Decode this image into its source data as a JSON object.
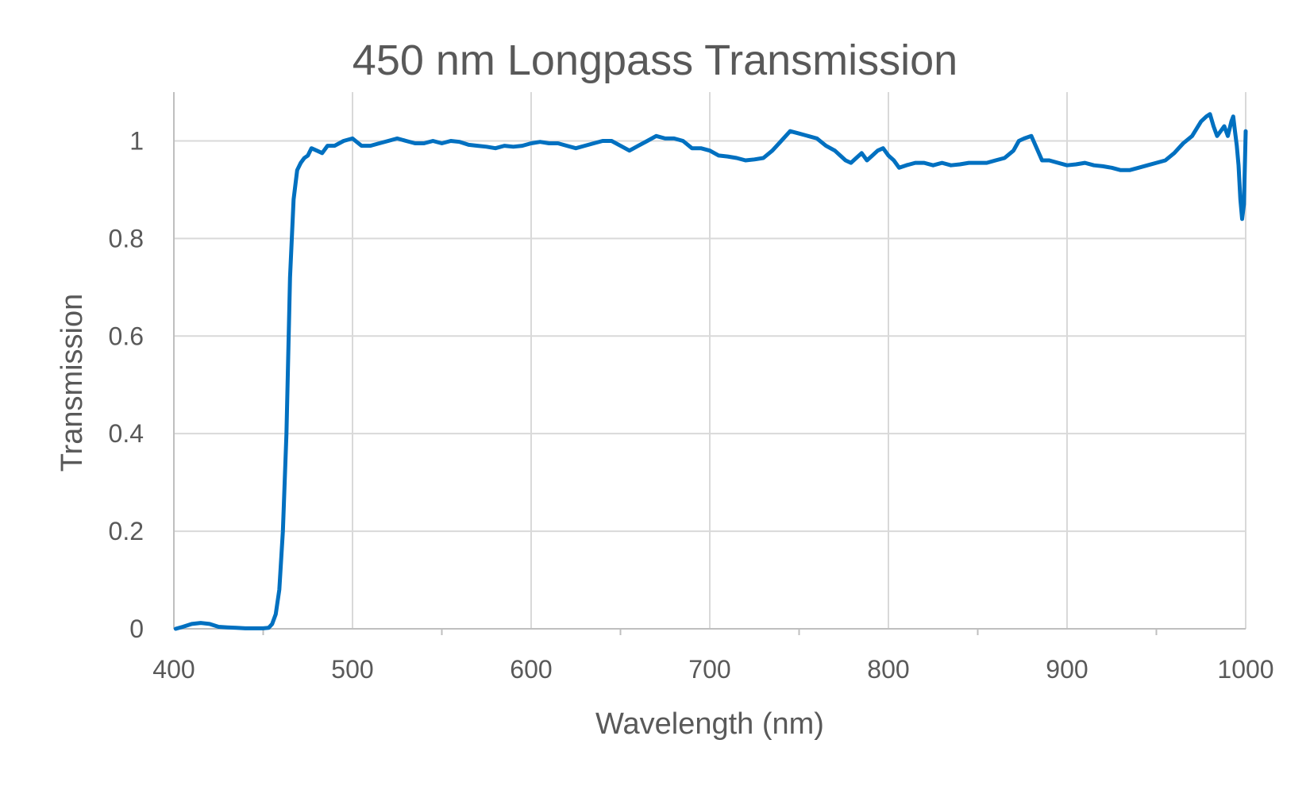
{
  "chart_data": {
    "type": "line",
    "title": "450 nm Longpass Transmission",
    "xlabel": "Wavelength (nm)",
    "ylabel": "Transmission",
    "xlim": [
      400,
      1000
    ],
    "ylim": [
      0,
      1.1
    ],
    "x_ticks": [
      400,
      500,
      600,
      700,
      800,
      900,
      1000
    ],
    "y_ticks": [
      0,
      0.2,
      0.4,
      0.6,
      0.8,
      1
    ],
    "x_tick_labels": [
      "400",
      "500",
      "600",
      "700",
      "800",
      "900",
      "1000"
    ],
    "y_tick_labels": [
      "0",
      "0.2",
      "0.4",
      "0.6",
      "0.8",
      "1"
    ],
    "grid": true,
    "legend": "none",
    "line_color": "#0070c0",
    "series": [
      {
        "x": [
          401,
          405,
          410,
          415,
          420,
          425,
          430,
          435,
          440,
          445,
          450,
          453,
          455,
          457,
          459,
          461,
          463,
          465,
          467,
          469,
          471,
          473,
          475,
          477,
          480,
          483,
          486,
          490,
          495,
          500,
          505,
          510,
          515,
          520,
          525,
          530,
          535,
          540,
          545,
          550,
          555,
          560,
          565,
          570,
          575,
          580,
          585,
          590,
          595,
          600,
          605,
          610,
          615,
          620,
          625,
          630,
          635,
          640,
          645,
          650,
          655,
          660,
          665,
          670,
          675,
          680,
          685,
          690,
          695,
          700,
          705,
          710,
          715,
          720,
          725,
          730,
          735,
          740,
          745,
          750,
          755,
          760,
          765,
          770,
          773,
          776,
          779,
          782,
          785,
          788,
          791,
          794,
          797,
          800,
          803,
          806,
          810,
          815,
          820,
          825,
          830,
          835,
          840,
          845,
          850,
          855,
          860,
          865,
          870,
          873,
          876,
          880,
          883,
          886,
          890,
          895,
          900,
          905,
          910,
          915,
          920,
          925,
          930,
          935,
          940,
          945,
          950,
          955,
          960,
          965,
          970,
          975,
          978,
          980,
          982,
          984,
          986,
          988,
          990,
          992,
          993,
          994,
          995,
          996,
          997,
          998,
          999,
          1000
        ],
        "y": [
          0,
          0.004,
          0.01,
          0.012,
          0.01,
          0.004,
          0.003,
          0.002,
          0.001,
          0.001,
          0.001,
          0.002,
          0.01,
          0.03,
          0.08,
          0.2,
          0.4,
          0.72,
          0.88,
          0.94,
          0.955,
          0.965,
          0.97,
          0.985,
          0.98,
          0.975,
          0.99,
          0.99,
          1.0,
          1.005,
          0.99,
          0.99,
          0.995,
          1.0,
          1.005,
          1.0,
          0.995,
          0.995,
          1.0,
          0.995,
          1.0,
          0.998,
          0.992,
          0.99,
          0.988,
          0.985,
          0.99,
          0.988,
          0.99,
          0.995,
          0.998,
          0.995,
          0.995,
          0.99,
          0.985,
          0.99,
          0.995,
          1.0,
          1.0,
          0.99,
          0.98,
          0.99,
          1.0,
          1.01,
          1.005,
          1.005,
          1.0,
          0.985,
          0.985,
          0.98,
          0.97,
          0.968,
          0.965,
          0.96,
          0.962,
          0.965,
          0.98,
          1.0,
          1.02,
          1.015,
          1.01,
          1.005,
          0.99,
          0.98,
          0.97,
          0.96,
          0.955,
          0.965,
          0.975,
          0.96,
          0.97,
          0.98,
          0.985,
          0.97,
          0.96,
          0.945,
          0.95,
          0.955,
          0.955,
          0.95,
          0.955,
          0.95,
          0.952,
          0.955,
          0.955,
          0.955,
          0.96,
          0.965,
          0.98,
          1.0,
          1.005,
          1.01,
          0.985,
          0.96,
          0.96,
          0.955,
          0.95,
          0.952,
          0.955,
          0.95,
          0.948,
          0.945,
          0.94,
          0.94,
          0.945,
          0.95,
          0.955,
          0.96,
          0.975,
          0.995,
          1.01,
          1.04,
          1.05,
          1.055,
          1.03,
          1.01,
          1.02,
          1.03,
          1.01,
          1.04,
          1.05,
          1.02,
          0.99,
          0.95,
          0.88,
          0.84,
          0.87,
          1.02
        ]
      }
    ]
  }
}
